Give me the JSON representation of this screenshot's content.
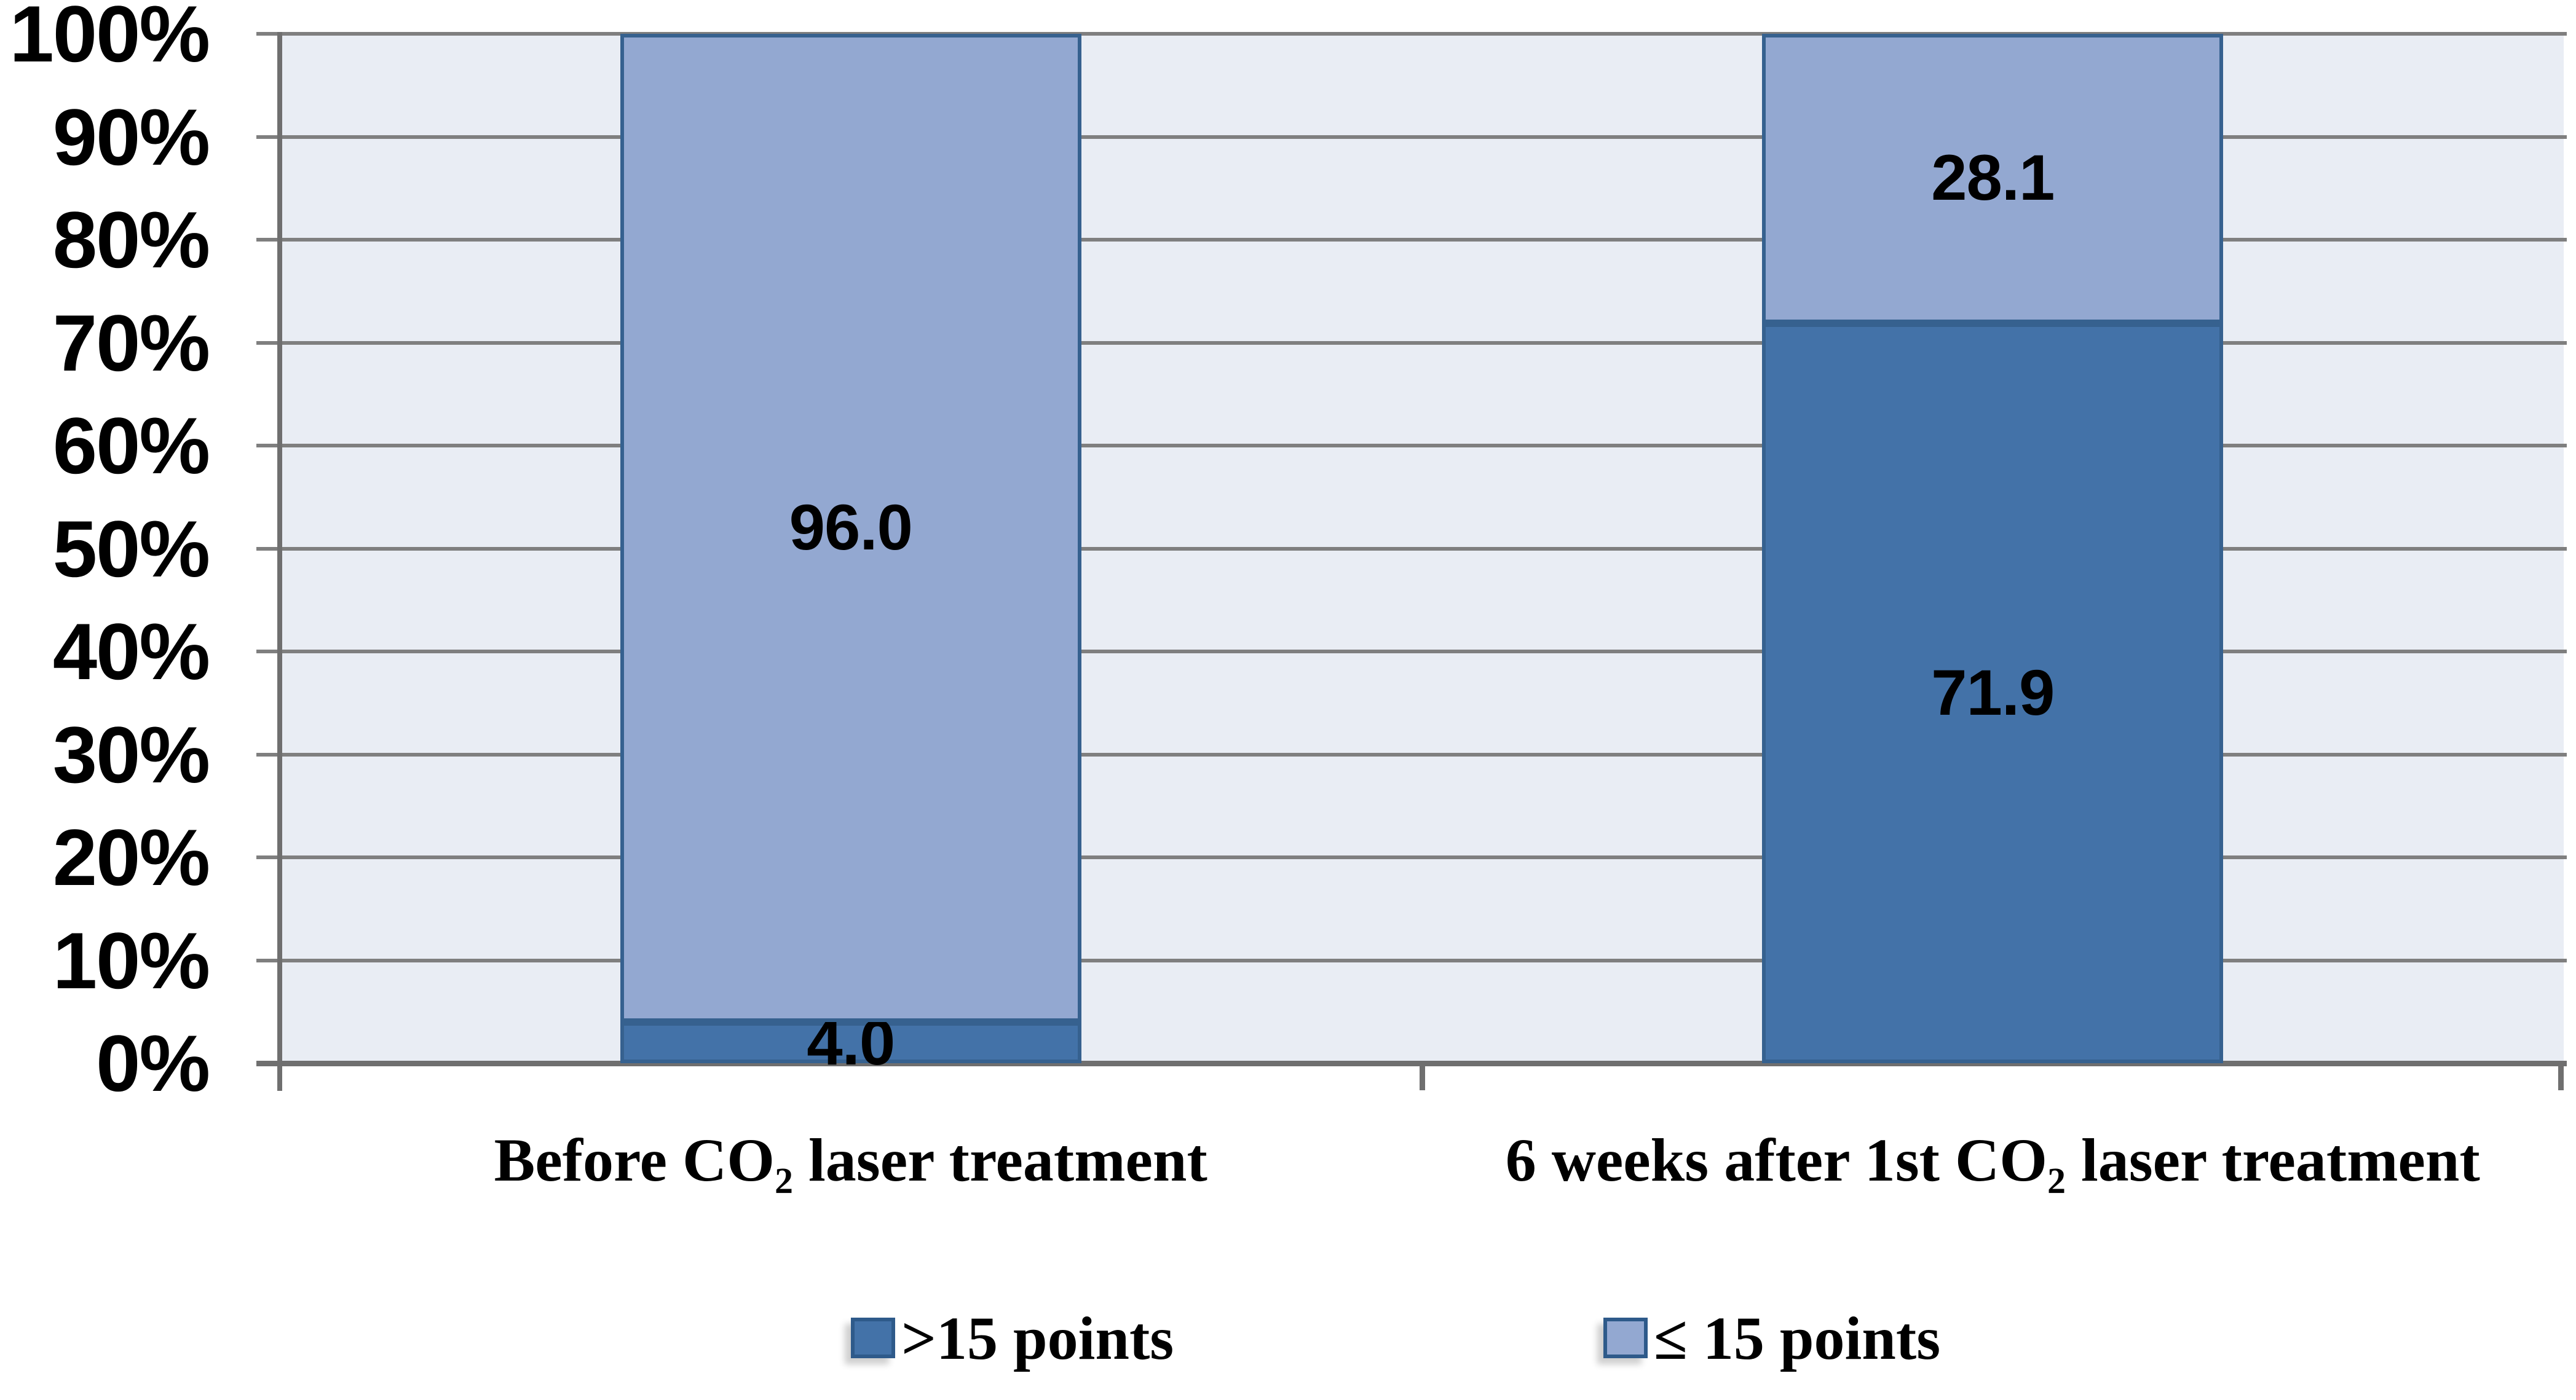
{
  "chart_data": {
    "type": "bar",
    "stacked": true,
    "unit": "%",
    "categories": [
      "Before CO₂ laser treatment",
      "6 weeks after 1st CO₂ laser treatment"
    ],
    "series": [
      {
        "name": ">15 points",
        "values": [
          4.0,
          71.9
        ],
        "color": "#4372a8"
      },
      {
        "name": "≤ 15 points",
        "values": [
          96.0,
          28.1
        ],
        "color": "#93a8d1"
      }
    ],
    "data_labels": [
      [
        "4.0",
        "71.9"
      ],
      [
        "96.0",
        "28.1"
      ]
    ],
    "y_ticks": [
      "0%",
      "10%",
      "20%",
      "30%",
      "40%",
      "50%",
      "60%",
      "70%",
      "80%",
      "90%",
      "100%"
    ],
    "ylim": [
      0,
      100
    ],
    "grid": true,
    "legend_position": "bottom",
    "colors": {
      "plot_background": "#e9edf4",
      "gridline": "#7f7f7f",
      "axis": "#6f6f6f",
      "bar_border": "#36618f",
      "legend_swatch_border": "#2e5a8a",
      "label_text": "#000000"
    }
  }
}
